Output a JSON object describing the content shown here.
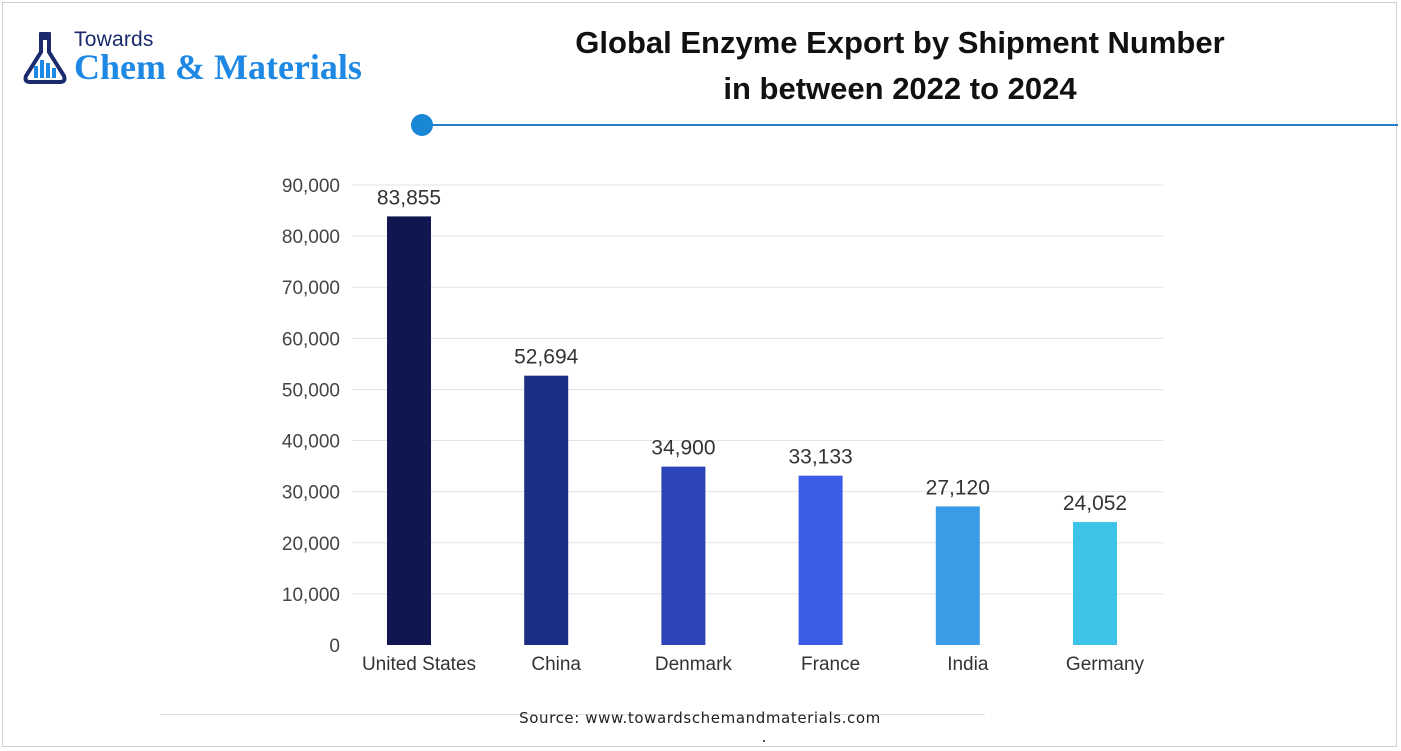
{
  "header": {
    "logo_top": "Towards",
    "logo_main": "Chem & Materials",
    "title_line1": "Global Enzyme Export by Shipment Number",
    "title_line2": "in between 2022 to 2024"
  },
  "footer": {
    "source": "Source: www.towardschemandmaterials.com"
  },
  "colors": {
    "accent_line": "#2a7fc9",
    "accent_dot": "#1a86d6",
    "logo_dark": "#1a2a6c",
    "logo_blue": "#1e88e5"
  },
  "chart_data": {
    "type": "bar",
    "title": "Global Enzyme Export by Shipment Number in between 2022 to 2024",
    "xlabel": "",
    "ylabel": "",
    "categories": [
      "United States",
      "China",
      "Denmark",
      "France",
      "India",
      "Germany"
    ],
    "values": [
      83855,
      52694,
      34900,
      33133,
      27120,
      24052
    ],
    "value_labels": [
      "83,855",
      "52,694",
      "34,900",
      "33,133",
      "27,120",
      "24,052"
    ],
    "bar_colors": [
      "#0f1650",
      "#1c2d84",
      "#2b45b8",
      "#3c5ce8",
      "#3a9be6",
      "#3cc3e8"
    ],
    "ylim": [
      0,
      90000
    ],
    "yticks": [
      0,
      10000,
      20000,
      30000,
      40000,
      50000,
      60000,
      70000,
      80000,
      90000
    ],
    "ytick_labels": [
      "0",
      "10,000",
      "20,000",
      "30,000",
      "40,000",
      "50,000",
      "60,000",
      "70,000",
      "80,000",
      "90,000"
    ],
    "grid": true,
    "legend": "none"
  }
}
